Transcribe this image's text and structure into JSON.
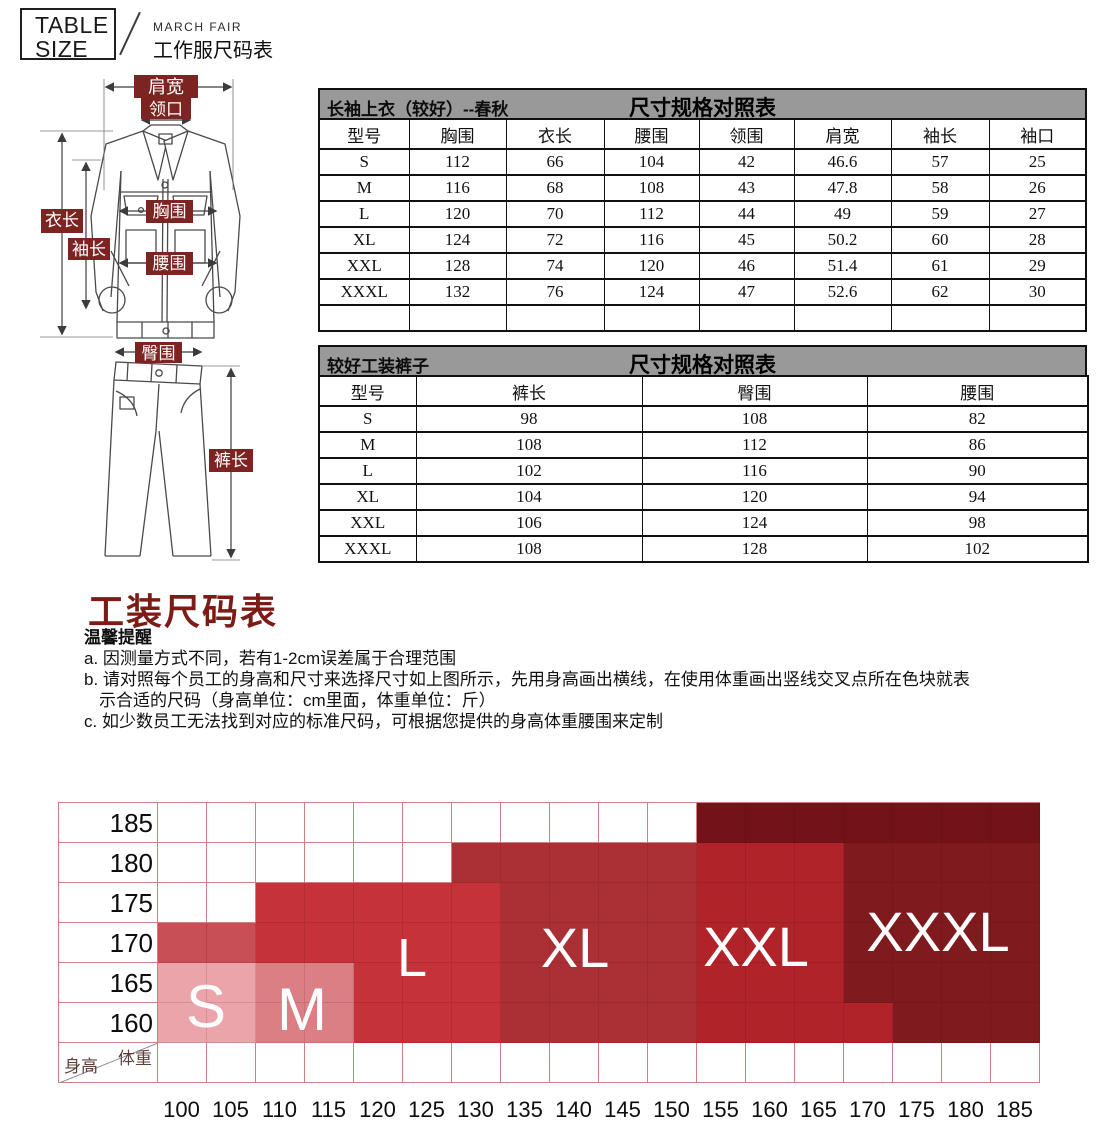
{
  "header": {
    "logo_line1": "TABLE",
    "logo_line2": "SIZE",
    "brand": "MARCH FAIR",
    "subtitle": "工作服尺码表"
  },
  "diagram": {
    "labels": {
      "shoulder": "肩宽",
      "collar": "领口",
      "coat_length": "衣长",
      "sleeve_length": "袖长",
      "chest": "胸围",
      "waist": "腰围",
      "hip": "臀围",
      "pants_length": "裤长"
    }
  },
  "tables": [
    {
      "title_left": "长袖上衣（较好）--春秋",
      "title_center": "尺寸规格对照表",
      "columns": [
        "型号",
        "胸围",
        "衣长",
        "腰围",
        "领围",
        "肩宽",
        "袖长",
        "袖口"
      ],
      "rows": [
        [
          "S",
          "112",
          "66",
          "104",
          "42",
          "46.6",
          "57",
          "25"
        ],
        [
          "M",
          "116",
          "68",
          "108",
          "43",
          "47.8",
          "58",
          "26"
        ],
        [
          "L",
          "120",
          "70",
          "112",
          "44",
          "49",
          "59",
          "27"
        ],
        [
          "XL",
          "124",
          "72",
          "116",
          "45",
          "50.2",
          "60",
          "28"
        ],
        [
          "XXL",
          "128",
          "74",
          "120",
          "46",
          "51.4",
          "61",
          "29"
        ],
        [
          "XXXL",
          "132",
          "76",
          "124",
          "47",
          "52.6",
          "62",
          "30"
        ],
        [
          "",
          "",
          "",
          "",
          "",
          "",
          "",
          ""
        ]
      ]
    },
    {
      "title_left": "较好工装裤子",
      "title_center": "尺寸规格对照表",
      "columns": [
        "型号",
        "裤长",
        "臀围",
        "腰围"
      ],
      "rows": [
        [
          "S",
          "98",
          "108",
          "82"
        ],
        [
          "M",
          "108",
          "112",
          "86"
        ],
        [
          "L",
          "102",
          "116",
          "90"
        ],
        [
          "XL",
          "104",
          "120",
          "94"
        ],
        [
          "XXL",
          "106",
          "124",
          "98"
        ],
        [
          "XXXL",
          "108",
          "128",
          "102"
        ]
      ]
    }
  ],
  "section_title": "工装尺码表",
  "notes": {
    "heading": "温馨提醒",
    "lines": [
      {
        "text": "a. 因测量方式不同，若有1-2cm误差属于合理范围",
        "indent": false
      },
      {
        "text": "b. 请对照每个员工的身高和尺寸来选择尺寸如上图所示，先用身高画出横线，在使用体重画出竖线交叉点所在色块就表",
        "indent": false
      },
      {
        "text": "示合适的尺码（身高单位：cm里面，体重单位：斤）",
        "indent": true
      },
      {
        "text": "c. 如少数员工无法找到对应的标准尺码，可根据您提供的身高体重腰围来定制",
        "indent": false
      }
    ]
  },
  "chart_data": {
    "type": "heatmap",
    "y_axis_label": "身高",
    "x_axis_label": "体重",
    "y_ticks": [
      185,
      180,
      175,
      170,
      165,
      160
    ],
    "x_ticks": [
      100,
      105,
      110,
      115,
      120,
      125,
      130,
      135,
      140,
      145,
      150,
      155,
      160,
      165,
      170,
      175,
      180,
      185
    ],
    "size_zones": [
      {
        "label": "S",
        "weight_range": "100-105",
        "height_range": "160-165"
      },
      {
        "label": "M",
        "weight_range": "110-115",
        "height_range": "160-165"
      },
      {
        "label": "L",
        "weight_range": "110-130",
        "height_range": "160-175"
      },
      {
        "label": "XL",
        "weight_range": "130-150",
        "height_range": "160-180"
      },
      {
        "label": "XXL",
        "weight_range": "155-170",
        "height_range": "160-180"
      },
      {
        "label": "XXXL",
        "weight_range": "155-185",
        "height_range": "160-185"
      }
    ],
    "palette": {
      "0": "#ffffff",
      "1": "#eaa4aa",
      "2": "#db7f85",
      "3": "#c84f56",
      "4": "#c63239",
      "5": "#aa3036",
      "6": "#b02329",
      "7": "#7f1b1f",
      "8": "#741317"
    },
    "grid": [
      [
        0,
        0,
        0,
        0,
        0,
        0,
        0,
        0,
        0,
        0,
        0,
        8,
        8,
        8,
        8,
        8,
        8,
        8
      ],
      [
        0,
        0,
        0,
        0,
        0,
        0,
        5,
        5,
        5,
        5,
        5,
        6,
        6,
        6,
        7,
        7,
        7,
        7
      ],
      [
        0,
        0,
        4,
        4,
        4,
        4,
        4,
        5,
        5,
        5,
        5,
        6,
        6,
        6,
        7,
        7,
        7,
        7
      ],
      [
        3,
        3,
        4,
        4,
        4,
        4,
        4,
        5,
        5,
        5,
        5,
        6,
        6,
        6,
        7,
        7,
        7,
        7
      ],
      [
        1,
        1,
        2,
        2,
        4,
        4,
        4,
        5,
        5,
        5,
        5,
        6,
        6,
        6,
        7,
        7,
        7,
        7
      ],
      [
        1,
        1,
        2,
        2,
        4,
        4,
        4,
        5,
        5,
        5,
        5,
        6,
        6,
        6,
        6,
        7,
        7,
        7
      ],
      [
        0,
        0,
        0,
        0,
        0,
        0,
        0,
        0,
        0,
        0,
        0,
        0,
        0,
        0,
        0,
        0,
        0,
        0
      ]
    ]
  }
}
